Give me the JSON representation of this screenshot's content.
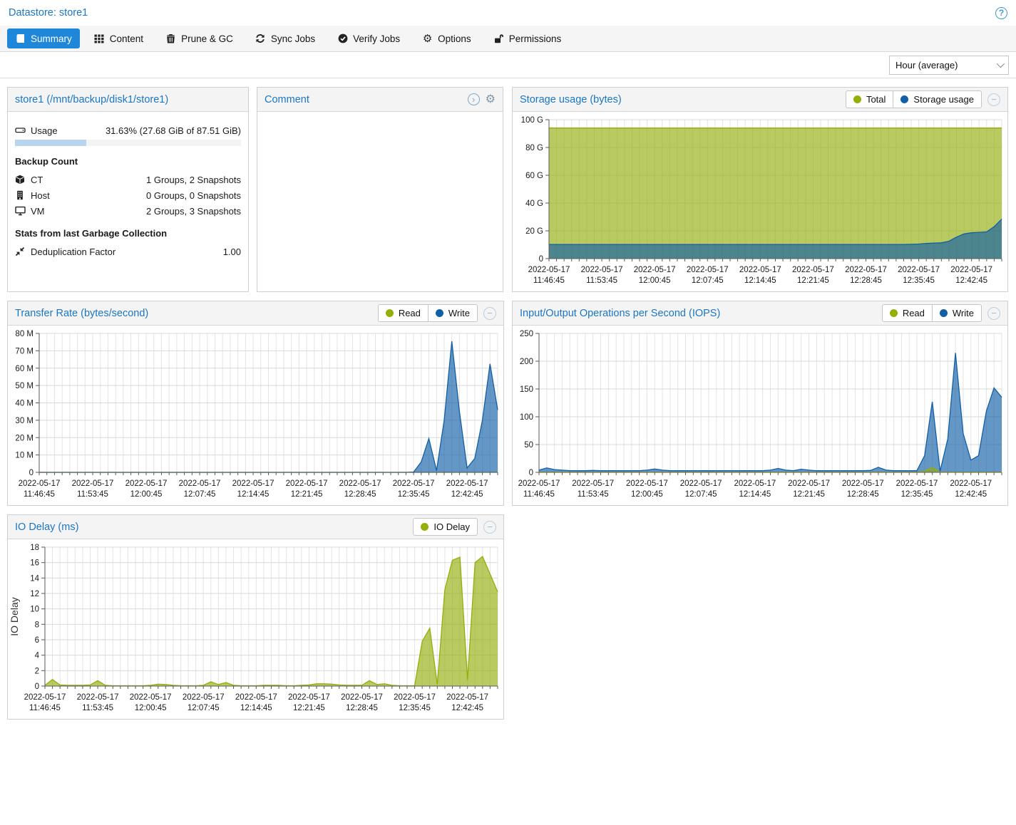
{
  "header": {
    "title": "Datastore: store1"
  },
  "tabs": [
    {
      "label": "Summary",
      "icon": "book",
      "active": true
    },
    {
      "label": "Content",
      "icon": "grid",
      "active": false
    },
    {
      "label": "Prune & GC",
      "icon": "trash",
      "active": false
    },
    {
      "label": "Sync Jobs",
      "icon": "sync",
      "active": false
    },
    {
      "label": "Verify Jobs",
      "icon": "check-circle",
      "active": false
    },
    {
      "label": "Options",
      "icon": "gear",
      "active": false
    },
    {
      "label": "Permissions",
      "icon": "unlock",
      "active": false
    }
  ],
  "toolbar": {
    "range_selector": "Hour (average)"
  },
  "datastore_panel": {
    "title": "store1 (/mnt/backup/disk1/store1)",
    "usage_label": "Usage",
    "usage_value": "31.63% (27.68 GiB of 87.51 GiB)",
    "usage_percent": 31.63,
    "backup_count_heading": "Backup Count",
    "counts": [
      {
        "icon": "cube-icon",
        "label": "CT",
        "value": "1 Groups, 2 Snapshots"
      },
      {
        "icon": "building-icon",
        "label": "Host",
        "value": "0 Groups, 0 Snapshots"
      },
      {
        "icon": "desktop-icon",
        "label": "VM",
        "value": "2 Groups, 3 Snapshots"
      }
    ],
    "gc_heading": "Stats from last Garbage Collection",
    "dedup_label": "Deduplication Factor",
    "dedup_value": "1.00"
  },
  "comment_panel": {
    "title": "Comment",
    "body": ""
  },
  "colors": {
    "accent_blue": "#1e87da",
    "title_blue": "#1b76c4",
    "read_green": "#94ae0a",
    "write_blue": "#115fa6"
  },
  "chart_data": [
    {
      "type": "area",
      "title": "Storage usage (bytes)",
      "legend": [
        {
          "label": "Total",
          "color": "#94ae0a"
        },
        {
          "label": "Storage usage",
          "color": "#115fa6"
        }
      ],
      "x_range_minutes": 60,
      "label_every_minutes": 7,
      "x_labels": [
        {
          "date": "2022-05-17",
          "time": "11:46:45"
        },
        {
          "date": "2022-05-17",
          "time": "11:53:45"
        },
        {
          "date": "2022-05-17",
          "time": "12:00:45"
        },
        {
          "date": "2022-05-17",
          "time": "12:07:45"
        },
        {
          "date": "2022-05-17",
          "time": "12:14:45"
        },
        {
          "date": "2022-05-17",
          "time": "12:21:45"
        },
        {
          "date": "2022-05-17",
          "time": "12:28:45"
        },
        {
          "date": "2022-05-17",
          "time": "12:35:45"
        },
        {
          "date": "2022-05-17",
          "time": "12:42:45"
        }
      ],
      "y_max": 100,
      "y_ticks": [
        {
          "value": 0,
          "label": "0"
        },
        {
          "value": 20,
          "label": "20 G"
        },
        {
          "value": 40,
          "label": "40 G"
        },
        {
          "value": 60,
          "label": "60 G"
        },
        {
          "value": 80,
          "label": "80 G"
        },
        {
          "value": 100,
          "label": "100 G"
        }
      ],
      "series": [
        {
          "name": "Total",
          "color": "#94ae0a",
          "z": 0,
          "values": [
            94,
            94,
            94,
            94,
            94,
            94,
            94,
            94,
            94,
            94,
            94,
            94,
            94,
            94,
            94,
            94,
            94,
            94,
            94,
            94,
            94,
            94,
            94,
            94,
            94,
            94,
            94,
            94,
            94,
            94,
            94,
            94,
            94,
            94,
            94,
            94,
            94,
            94,
            94,
            94,
            94,
            94,
            94,
            94,
            94,
            94,
            94,
            94,
            94,
            94,
            94,
            94,
            94,
            94,
            94,
            94,
            94,
            94,
            94,
            94,
            94
          ]
        },
        {
          "name": "Storage usage",
          "color": "#115fa6",
          "z": 1,
          "values": [
            10.2,
            10.2,
            10.2,
            10.2,
            10.2,
            10.2,
            10.2,
            10.2,
            10.2,
            10.2,
            10.2,
            10.2,
            10.2,
            10.2,
            10.2,
            10.2,
            10.2,
            10.2,
            10.2,
            10.2,
            10.2,
            10.2,
            10.2,
            10.2,
            10.2,
            10.2,
            10.2,
            10.2,
            10.2,
            10.2,
            10.2,
            10.2,
            10.2,
            10.2,
            10.2,
            10.2,
            10.2,
            10.2,
            10.2,
            10.2,
            10.2,
            10.2,
            10.2,
            10.2,
            10.2,
            10.2,
            10.2,
            10.2,
            10.3,
            10.5,
            10.9,
            11.2,
            11.4,
            12.5,
            15.5,
            17.8,
            18.6,
            18.9,
            19.3,
            23.0,
            28.5
          ]
        }
      ]
    },
    {
      "type": "area",
      "title": "Transfer Rate (bytes/second)",
      "legend": [
        {
          "label": "Read",
          "color": "#94ae0a"
        },
        {
          "label": "Write",
          "color": "#115fa6"
        }
      ],
      "x_range_minutes": 60,
      "label_every_minutes": 7,
      "x_labels": [
        {
          "date": "2022-05-17",
          "time": "11:46:45"
        },
        {
          "date": "2022-05-17",
          "time": "11:53:45"
        },
        {
          "date": "2022-05-17",
          "time": "12:00:45"
        },
        {
          "date": "2022-05-17",
          "time": "12:07:45"
        },
        {
          "date": "2022-05-17",
          "time": "12:14:45"
        },
        {
          "date": "2022-05-17",
          "time": "12:21:45"
        },
        {
          "date": "2022-05-17",
          "time": "12:28:45"
        },
        {
          "date": "2022-05-17",
          "time": "12:35:45"
        },
        {
          "date": "2022-05-17",
          "time": "12:42:45"
        }
      ],
      "y_max": 80,
      "y_ticks": [
        {
          "value": 0,
          "label": "0"
        },
        {
          "value": 10,
          "label": "10 M"
        },
        {
          "value": 20,
          "label": "20 M"
        },
        {
          "value": 30,
          "label": "30 M"
        },
        {
          "value": 40,
          "label": "40 M"
        },
        {
          "value": 50,
          "label": "50 M"
        },
        {
          "value": 60,
          "label": "60 M"
        },
        {
          "value": 70,
          "label": "70 M"
        },
        {
          "value": 80,
          "label": "80 M"
        }
      ],
      "series": [
        {
          "name": "Read",
          "color": "#94ae0a",
          "z": 0,
          "values": [
            0,
            0,
            0,
            0,
            0,
            0,
            0,
            0,
            0,
            0,
            0,
            0,
            0,
            0,
            0,
            0,
            0,
            0,
            0,
            0,
            0,
            0,
            0,
            0,
            0,
            0,
            0,
            0,
            0,
            0,
            0,
            0,
            0,
            0,
            0,
            0,
            0,
            0,
            0,
            0,
            0,
            0,
            0,
            0,
            0,
            0,
            0,
            0,
            0,
            0,
            0,
            0,
            0,
            0,
            0,
            0,
            0,
            0,
            0,
            0,
            0
          ]
        },
        {
          "name": "Write",
          "color": "#115fa6",
          "z": 1,
          "values": [
            0,
            0,
            0,
            0,
            0,
            0,
            0,
            0,
            0,
            0,
            0,
            0,
            0,
            0,
            0,
            0,
            0,
            0,
            0,
            0,
            0,
            0,
            0,
            0,
            0,
            0,
            0,
            0,
            0,
            0,
            0,
            0,
            0,
            0,
            0,
            0,
            0,
            0,
            0,
            0,
            0,
            0,
            0,
            0,
            0,
            0,
            0,
            0,
            0,
            0.2,
            6,
            19.5,
            1,
            30,
            75.5,
            35,
            2.5,
            8,
            30,
            62.5,
            36
          ]
        }
      ]
    },
    {
      "type": "area",
      "title": "Input/Output Operations per Second (IOPS)",
      "legend": [
        {
          "label": "Read",
          "color": "#94ae0a"
        },
        {
          "label": "Write",
          "color": "#115fa6"
        }
      ],
      "x_range_minutes": 60,
      "label_every_minutes": 7,
      "x_labels": [
        {
          "date": "2022-05-17",
          "time": "11:46:45"
        },
        {
          "date": "2022-05-17",
          "time": "11:53:45"
        },
        {
          "date": "2022-05-17",
          "time": "12:00:45"
        },
        {
          "date": "2022-05-17",
          "time": "12:07:45"
        },
        {
          "date": "2022-05-17",
          "time": "12:14:45"
        },
        {
          "date": "2022-05-17",
          "time": "12:21:45"
        },
        {
          "date": "2022-05-17",
          "time": "12:28:45"
        },
        {
          "date": "2022-05-17",
          "time": "12:35:45"
        },
        {
          "date": "2022-05-17",
          "time": "12:42:45"
        }
      ],
      "y_max": 250,
      "y_ticks": [
        {
          "value": 0,
          "label": "0"
        },
        {
          "value": 50,
          "label": "50"
        },
        {
          "value": 100,
          "label": "100"
        },
        {
          "value": 150,
          "label": "150"
        },
        {
          "value": 200,
          "label": "200"
        },
        {
          "value": 250,
          "label": "250"
        }
      ],
      "series": [
        {
          "name": "Read",
          "color": "#94ae0a",
          "z": 2,
          "values": [
            0.5,
            0.5,
            0.5,
            0.5,
            0.5,
            0.5,
            0.5,
            0.5,
            0.5,
            0.5,
            0.5,
            0.5,
            0.5,
            0.5,
            0.5,
            0.5,
            0.5,
            0.5,
            0.5,
            0.5,
            0.5,
            0.5,
            0.5,
            0.5,
            0.5,
            0.5,
            0.5,
            0.5,
            0.5,
            0.5,
            0.5,
            0.5,
            0.5,
            0.5,
            0.5,
            0.5,
            0.5,
            0.5,
            0.5,
            0.5,
            0.5,
            0.5,
            0.5,
            0.5,
            0.5,
            0.5,
            0.5,
            0.5,
            0.5,
            0.5,
            2,
            9,
            0.5,
            0.5,
            0.5,
            0.5,
            0.5,
            0.5,
            0.5,
            0.5,
            0.5
          ]
        },
        {
          "name": "Write",
          "color": "#115fa6",
          "z": 1,
          "values": [
            4,
            8,
            5,
            4,
            3,
            3,
            3,
            3.5,
            3,
            3,
            3,
            3,
            3,
            3,
            4,
            6,
            4,
            3,
            3,
            3,
            3,
            3,
            3,
            3,
            3,
            3,
            3,
            3,
            3,
            3,
            4,
            7,
            4,
            3,
            5.5,
            4,
            3,
            3,
            3,
            3,
            3,
            3,
            3,
            3.5,
            9,
            4,
            3,
            3,
            3,
            3,
            30,
            127,
            2,
            60,
            215,
            70,
            22,
            30,
            110,
            152,
            135
          ]
        }
      ]
    },
    {
      "type": "area",
      "title": "IO Delay (ms)",
      "y_axis_label": "IO Delay",
      "legend": [
        {
          "label": "IO Delay",
          "color": "#94ae0a"
        }
      ],
      "x_range_minutes": 60,
      "label_every_minutes": 7,
      "x_labels": [
        {
          "date": "2022-05-17",
          "time": "11:46:45"
        },
        {
          "date": "2022-05-17",
          "time": "11:53:45"
        },
        {
          "date": "2022-05-17",
          "time": "12:00:45"
        },
        {
          "date": "2022-05-17",
          "time": "12:07:45"
        },
        {
          "date": "2022-05-17",
          "time": "12:14:45"
        },
        {
          "date": "2022-05-17",
          "time": "12:21:45"
        },
        {
          "date": "2022-05-17",
          "time": "12:28:45"
        },
        {
          "date": "2022-05-17",
          "time": "12:35:45"
        },
        {
          "date": "2022-05-17",
          "time": "12:42:45"
        }
      ],
      "y_max": 18,
      "y_ticks": [
        {
          "value": 0,
          "label": "0"
        },
        {
          "value": 2,
          "label": "2"
        },
        {
          "value": 4,
          "label": "4"
        },
        {
          "value": 6,
          "label": "6"
        },
        {
          "value": 8,
          "label": "8"
        },
        {
          "value": 10,
          "label": "10"
        },
        {
          "value": 12,
          "label": "12"
        },
        {
          "value": 14,
          "label": "14"
        },
        {
          "value": 16,
          "label": "16"
        },
        {
          "value": 18,
          "label": "18"
        }
      ],
      "series": [
        {
          "name": "IO Delay",
          "color": "#94ae0a",
          "z": 0,
          "values": [
            0.1,
            0.85,
            0.15,
            0.1,
            0.1,
            0.1,
            0.15,
            0.7,
            0.1,
            0.05,
            0.05,
            0.05,
            0.05,
            0.05,
            0.1,
            0.25,
            0.2,
            0.1,
            0.05,
            0.05,
            0.05,
            0.1,
            0.55,
            0.2,
            0.45,
            0.1,
            0.05,
            0.05,
            0.05,
            0.1,
            0.1,
            0.1,
            0.05,
            0.05,
            0.1,
            0.15,
            0.3,
            0.3,
            0.25,
            0.15,
            0.1,
            0.1,
            0.1,
            0.7,
            0.2,
            0.3,
            0.1,
            0.05,
            0.05,
            0.05,
            5.8,
            7.5,
            0.2,
            12.5,
            16.3,
            16.7,
            0.8,
            16.0,
            16.8,
            14.5,
            12.2
          ]
        }
      ]
    }
  ]
}
